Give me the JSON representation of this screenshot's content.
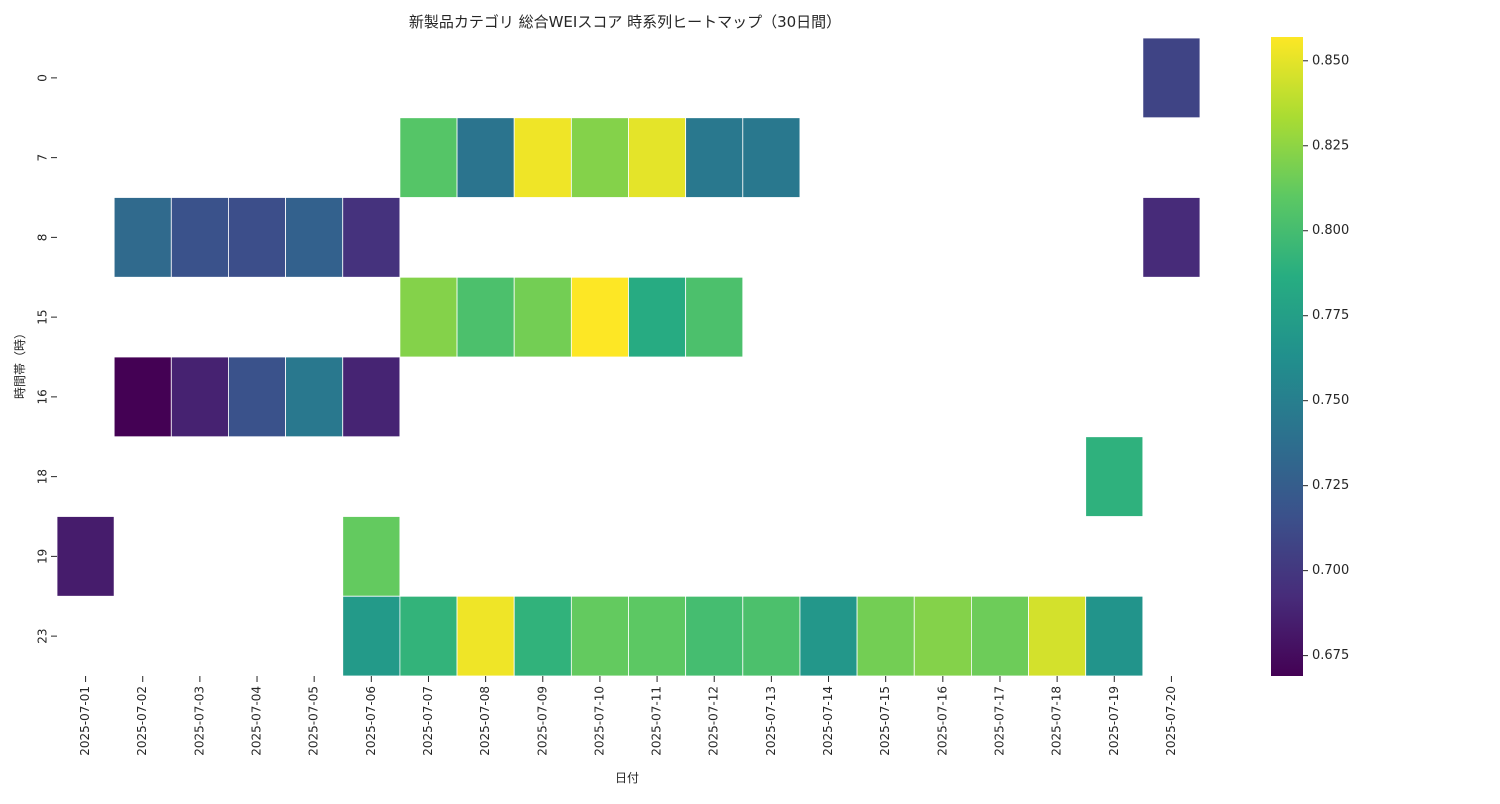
{
  "chart_data": {
    "type": "heatmap",
    "title": "新製品カテゴリ 総合WEIスコア 時系列ヒートマップ（30日間）",
    "xlabel": "日付",
    "ylabel": "時間帯（時）",
    "x_categories": [
      "2025-07-01",
      "2025-07-02",
      "2025-07-03",
      "2025-07-04",
      "2025-07-05",
      "2025-07-06",
      "2025-07-07",
      "2025-07-08",
      "2025-07-09",
      "2025-07-10",
      "2025-07-11",
      "2025-07-12",
      "2025-07-13",
      "2025-07-14",
      "2025-07-15",
      "2025-07-16",
      "2025-07-17",
      "2025-07-18",
      "2025-07-19",
      "2025-07-20"
    ],
    "y_categories": [
      "0",
      "7",
      "8",
      "15",
      "16",
      "18",
      "19",
      "23"
    ],
    "colormap": "viridis",
    "colorbar": {
      "min": 0.669,
      "max": 0.857,
      "ticks": [
        0.675,
        0.7,
        0.725,
        0.75,
        0.775,
        0.8,
        0.825,
        0.85
      ],
      "tick_labels": [
        "0.675",
        "0.700",
        "0.725",
        "0.750",
        "0.775",
        "0.800",
        "0.825",
        "0.850"
      ]
    },
    "values": [
      [
        null,
        null,
        null,
        null,
        null,
        null,
        null,
        null,
        null,
        null,
        null,
        null,
        null,
        null,
        null,
        null,
        null,
        null,
        null,
        0.708
      ],
      [
        null,
        null,
        null,
        null,
        null,
        null,
        0.807,
        0.742,
        0.853,
        0.822,
        0.85,
        0.745,
        0.745,
        null,
        null,
        null,
        null,
        null,
        null,
        null
      ],
      [
        null,
        0.734,
        0.717,
        0.714,
        0.728,
        0.696,
        null,
        null,
        null,
        null,
        null,
        null,
        null,
        null,
        null,
        null,
        null,
        null,
        null,
        0.692
      ],
      [
        null,
        null,
        null,
        null,
        null,
        null,
        0.822,
        0.803,
        0.817,
        0.857,
        0.785,
        0.803,
        null,
        null,
        null,
        null,
        null,
        null,
        null,
        null
      ],
      [
        null,
        0.669,
        0.687,
        0.717,
        0.745,
        0.688,
        null,
        null,
        null,
        null,
        null,
        null,
        null,
        null,
        null,
        null,
        null,
        null,
        null,
        null
      ],
      [
        null,
        null,
        null,
        null,
        null,
        null,
        null,
        null,
        null,
        null,
        null,
        null,
        null,
        null,
        null,
        null,
        null,
        null,
        0.79,
        null
      ],
      [
        0.684,
        null,
        null,
        null,
        null,
        0.812,
        null,
        null,
        null,
        null,
        null,
        null,
        null,
        null,
        null,
        null,
        null,
        null,
        null,
        null
      ],
      [
        null,
        null,
        null,
        null,
        null,
        0.771,
        0.792,
        0.853,
        0.791,
        0.812,
        0.81,
        0.8,
        0.803,
        0.769,
        0.817,
        0.822,
        0.815,
        0.845,
        0.766,
        null
      ]
    ]
  }
}
